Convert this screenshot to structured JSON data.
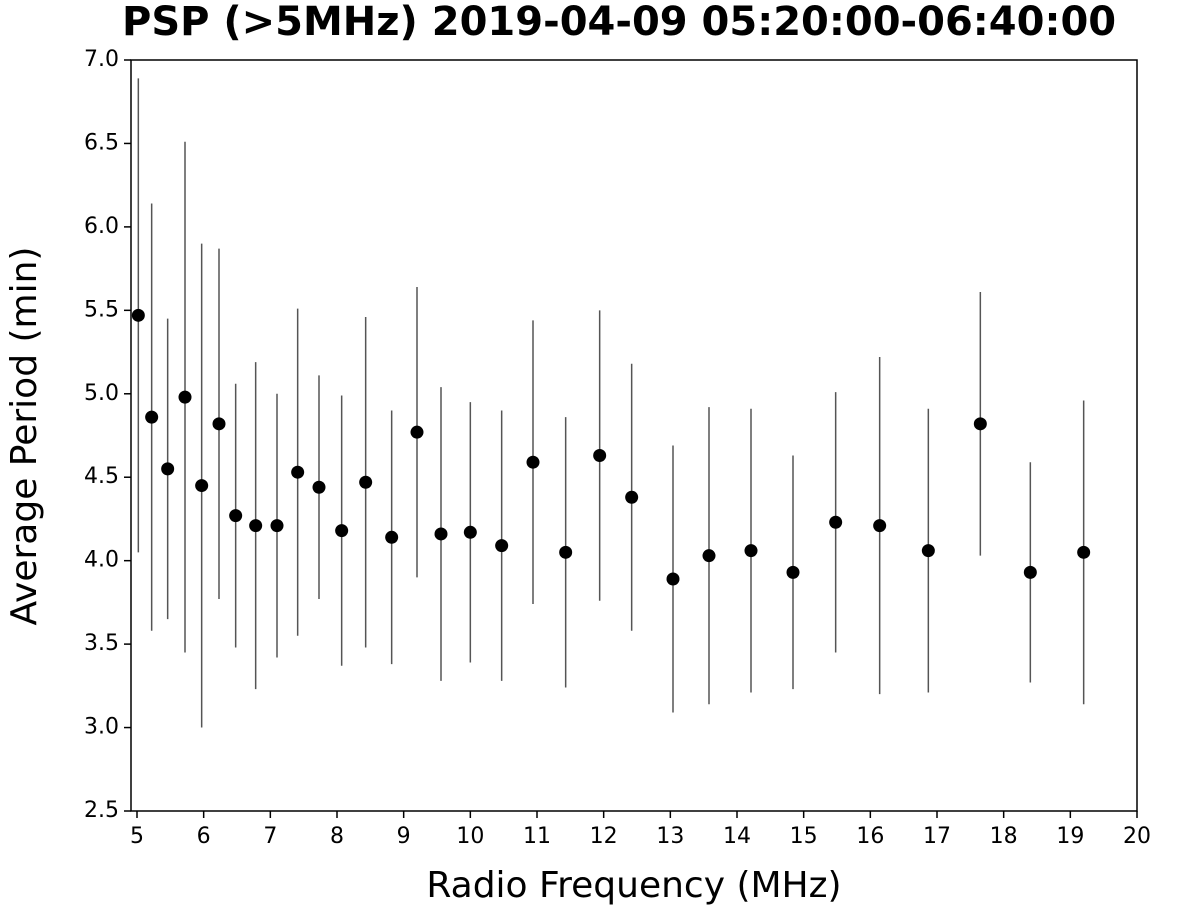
{
  "chart_data": {
    "type": "errorbar",
    "title": "PSP (>5MHz) 2019-04-09 05:20:00-06:40:00",
    "x_label": "Radio Frequency (MHz)",
    "y_label": "Average Period (min)",
    "x": [
      5.02,
      5.22,
      5.46,
      5.72,
      5.97,
      6.23,
      6.48,
      6.78,
      7.1,
      7.41,
      7.73,
      8.07,
      8.43,
      8.82,
      9.2,
      9.56,
      10.0,
      10.47,
      10.94,
      11.43,
      11.94,
      12.42,
      13.04,
      13.58,
      14.21,
      14.84,
      15.48,
      16.14,
      16.87,
      17.65,
      18.4,
      19.2
    ],
    "values": [
      5.47,
      4.86,
      4.55,
      4.98,
      4.45,
      4.82,
      4.27,
      4.21,
      4.21,
      4.53,
      4.44,
      4.18,
      4.47,
      4.14,
      4.77,
      4.16,
      4.17,
      4.09,
      4.59,
      4.05,
      4.63,
      4.38,
      3.89,
      4.03,
      4.06,
      3.93,
      4.23,
      4.21,
      4.06,
      4.82,
      3.93,
      4.05
    ],
    "errors": [
      1.42,
      1.28,
      0.9,
      1.53,
      1.45,
      1.05,
      0.79,
      0.98,
      0.79,
      0.98,
      0.67,
      0.81,
      0.99,
      0.76,
      0.87,
      0.88,
      0.78,
      0.81,
      0.85,
      0.81,
      0.87,
      0.8,
      0.8,
      0.89,
      0.85,
      0.7,
      0.78,
      1.01,
      0.85,
      0.79,
      0.66,
      0.91
    ],
    "color": "#000000",
    "error_color": "#555555",
    "xlim": [
      4.91,
      20
    ],
    "ylim": [
      2.5,
      7.0
    ],
    "xticks": [
      5,
      6,
      7,
      8,
      9,
      10,
      11,
      12,
      13,
      14,
      15,
      16,
      17,
      18,
      19,
      20
    ],
    "yticks": [
      2.5,
      {
        "value": 3,
        "label": "3.0"
      },
      3.5,
      {
        "value": 4,
        "label": "4.0"
      },
      4.5,
      {
        "value": 5,
        "label": "5.0"
      },
      5.5,
      {
        "value": 6,
        "label": "6.0"
      },
      6.5,
      {
        "value": 7,
        "label": "7.0"
      }
    ]
  }
}
